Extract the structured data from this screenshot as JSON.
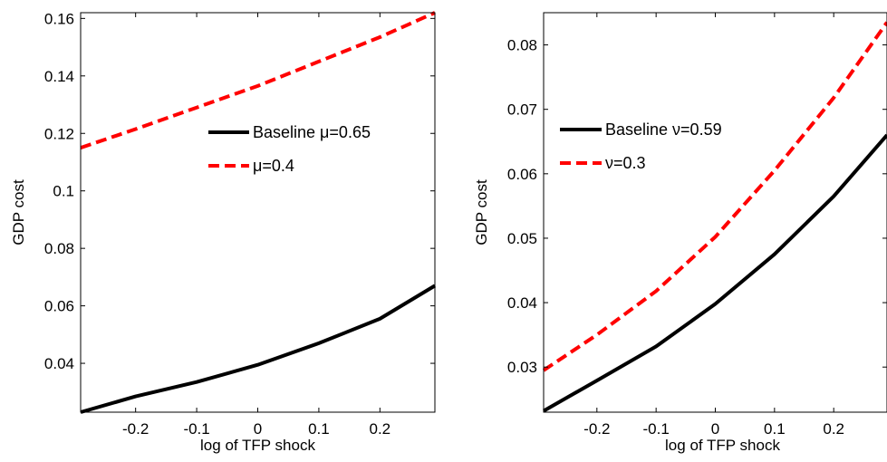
{
  "chart_data": [
    {
      "type": "line",
      "title": "",
      "xlabel": "log of TFP shock",
      "ylabel": "GDP cost",
      "xlim": [
        -0.29,
        0.29
      ],
      "ylim": [
        0.023,
        0.162
      ],
      "xticks": [
        -0.2,
        -0.1,
        0,
        0.1,
        0.2
      ],
      "xtick_labels": [
        "-0.2",
        "-0.1",
        "0",
        "0.1",
        "0.2"
      ],
      "yticks": [
        0.04,
        0.06,
        0.08,
        0.1,
        0.12,
        0.14,
        0.16
      ],
      "ytick_labels": [
        "0.04",
        "0.06",
        "0.08",
        "0.1",
        "0.12",
        "0.14",
        "0.16"
      ],
      "grid": false,
      "legend_position": "center-right",
      "x": [
        -0.29,
        -0.2,
        -0.1,
        0,
        0.1,
        0.2,
        0.29
      ],
      "series": [
        {
          "name": "Baseline μ=0.65",
          "color": "#000000",
          "dash": "solid",
          "values": [
            0.023,
            0.0285,
            0.0335,
            0.0395,
            0.047,
            0.0555,
            0.067
          ]
        },
        {
          "name": "μ=0.4",
          "color": "#ff0000",
          "dash": "dashed",
          "values": [
            0.115,
            0.1215,
            0.129,
            0.1365,
            0.145,
            0.1535,
            0.162
          ]
        }
      ]
    },
    {
      "type": "line",
      "title": "",
      "xlabel": "log of TFP shock",
      "ylabel": "GDP cost",
      "xlim": [
        -0.29,
        0.29
      ],
      "ylim": [
        0.023,
        0.085
      ],
      "xticks": [
        -0.2,
        -0.1,
        0,
        0.1,
        0.2
      ],
      "xtick_labels": [
        "-0.2",
        "-0.1",
        "0",
        "0.1",
        "0.2"
      ],
      "yticks": [
        0.03,
        0.04,
        0.05,
        0.06,
        0.07,
        0.08
      ],
      "ytick_labels": [
        "0.03",
        "0.04",
        "0.05",
        "0.06",
        "0.07",
        "0.08"
      ],
      "grid": false,
      "legend_position": "upper-left",
      "x": [
        -0.29,
        -0.2,
        -0.1,
        0,
        0.1,
        0.2,
        0.29
      ],
      "series": [
        {
          "name": "Baseline ν=0.59",
          "color": "#000000",
          "dash": "solid",
          "values": [
            0.0232,
            0.0279,
            0.0332,
            0.0398,
            0.0475,
            0.0565,
            0.066
          ]
        },
        {
          "name": "ν=0.3",
          "color": "#ff0000",
          "dash": "dashed",
          "values": [
            0.0295,
            0.035,
            0.0418,
            0.0502,
            0.0605,
            0.0718,
            0.0835
          ]
        }
      ]
    }
  ]
}
